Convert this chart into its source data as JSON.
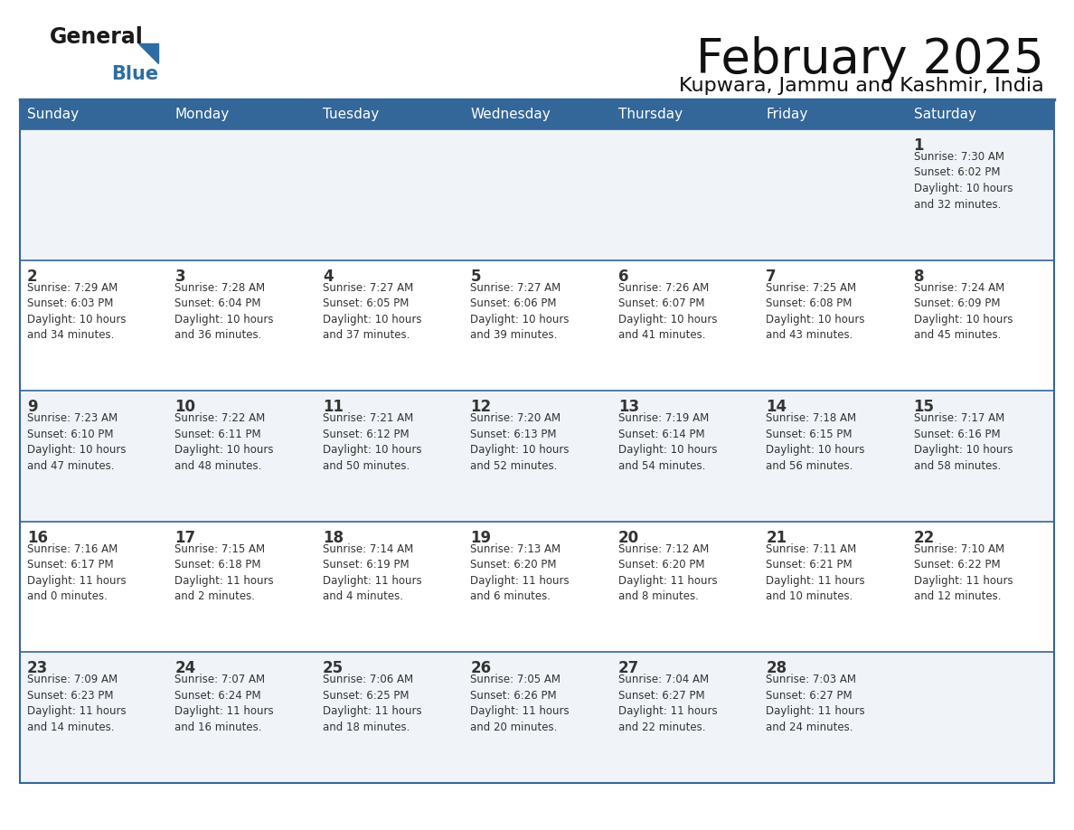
{
  "title": "February 2025",
  "subtitle": "Kupwara, Jammu and Kashmir, India",
  "header_bg": "#336699",
  "header_text_color": "#FFFFFF",
  "cell_bg_light": "#F0F4F8",
  "cell_bg_white": "#FFFFFF",
  "border_color": "#336699",
  "text_color": "#333333",
  "day_num_color": "#333333",
  "days_of_week": [
    "Sunday",
    "Monday",
    "Tuesday",
    "Wednesday",
    "Thursday",
    "Friday",
    "Saturday"
  ],
  "logo_general_color": "#1a1a1a",
  "logo_blue_color": "#2E6DA4",
  "logo_triangle_color": "#2E6DA4",
  "weeks": [
    [
      {
        "day": "",
        "info": ""
      },
      {
        "day": "",
        "info": ""
      },
      {
        "day": "",
        "info": ""
      },
      {
        "day": "",
        "info": ""
      },
      {
        "day": "",
        "info": ""
      },
      {
        "day": "",
        "info": ""
      },
      {
        "day": "1",
        "info": "Sunrise: 7:30 AM\nSunset: 6:02 PM\nDaylight: 10 hours\nand 32 minutes."
      }
    ],
    [
      {
        "day": "2",
        "info": "Sunrise: 7:29 AM\nSunset: 6:03 PM\nDaylight: 10 hours\nand 34 minutes."
      },
      {
        "day": "3",
        "info": "Sunrise: 7:28 AM\nSunset: 6:04 PM\nDaylight: 10 hours\nand 36 minutes."
      },
      {
        "day": "4",
        "info": "Sunrise: 7:27 AM\nSunset: 6:05 PM\nDaylight: 10 hours\nand 37 minutes."
      },
      {
        "day": "5",
        "info": "Sunrise: 7:27 AM\nSunset: 6:06 PM\nDaylight: 10 hours\nand 39 minutes."
      },
      {
        "day": "6",
        "info": "Sunrise: 7:26 AM\nSunset: 6:07 PM\nDaylight: 10 hours\nand 41 minutes."
      },
      {
        "day": "7",
        "info": "Sunrise: 7:25 AM\nSunset: 6:08 PM\nDaylight: 10 hours\nand 43 minutes."
      },
      {
        "day": "8",
        "info": "Sunrise: 7:24 AM\nSunset: 6:09 PM\nDaylight: 10 hours\nand 45 minutes."
      }
    ],
    [
      {
        "day": "9",
        "info": "Sunrise: 7:23 AM\nSunset: 6:10 PM\nDaylight: 10 hours\nand 47 minutes."
      },
      {
        "day": "10",
        "info": "Sunrise: 7:22 AM\nSunset: 6:11 PM\nDaylight: 10 hours\nand 48 minutes."
      },
      {
        "day": "11",
        "info": "Sunrise: 7:21 AM\nSunset: 6:12 PM\nDaylight: 10 hours\nand 50 minutes."
      },
      {
        "day": "12",
        "info": "Sunrise: 7:20 AM\nSunset: 6:13 PM\nDaylight: 10 hours\nand 52 minutes."
      },
      {
        "day": "13",
        "info": "Sunrise: 7:19 AM\nSunset: 6:14 PM\nDaylight: 10 hours\nand 54 minutes."
      },
      {
        "day": "14",
        "info": "Sunrise: 7:18 AM\nSunset: 6:15 PM\nDaylight: 10 hours\nand 56 minutes."
      },
      {
        "day": "15",
        "info": "Sunrise: 7:17 AM\nSunset: 6:16 PM\nDaylight: 10 hours\nand 58 minutes."
      }
    ],
    [
      {
        "day": "16",
        "info": "Sunrise: 7:16 AM\nSunset: 6:17 PM\nDaylight: 11 hours\nand 0 minutes."
      },
      {
        "day": "17",
        "info": "Sunrise: 7:15 AM\nSunset: 6:18 PM\nDaylight: 11 hours\nand 2 minutes."
      },
      {
        "day": "18",
        "info": "Sunrise: 7:14 AM\nSunset: 6:19 PM\nDaylight: 11 hours\nand 4 minutes."
      },
      {
        "day": "19",
        "info": "Sunrise: 7:13 AM\nSunset: 6:20 PM\nDaylight: 11 hours\nand 6 minutes."
      },
      {
        "day": "20",
        "info": "Sunrise: 7:12 AM\nSunset: 6:20 PM\nDaylight: 11 hours\nand 8 minutes."
      },
      {
        "day": "21",
        "info": "Sunrise: 7:11 AM\nSunset: 6:21 PM\nDaylight: 11 hours\nand 10 minutes."
      },
      {
        "day": "22",
        "info": "Sunrise: 7:10 AM\nSunset: 6:22 PM\nDaylight: 11 hours\nand 12 minutes."
      }
    ],
    [
      {
        "day": "23",
        "info": "Sunrise: 7:09 AM\nSunset: 6:23 PM\nDaylight: 11 hours\nand 14 minutes."
      },
      {
        "day": "24",
        "info": "Sunrise: 7:07 AM\nSunset: 6:24 PM\nDaylight: 11 hours\nand 16 minutes."
      },
      {
        "day": "25",
        "info": "Sunrise: 7:06 AM\nSunset: 6:25 PM\nDaylight: 11 hours\nand 18 minutes."
      },
      {
        "day": "26",
        "info": "Sunrise: 7:05 AM\nSunset: 6:26 PM\nDaylight: 11 hours\nand 20 minutes."
      },
      {
        "day": "27",
        "info": "Sunrise: 7:04 AM\nSunset: 6:27 PM\nDaylight: 11 hours\nand 22 minutes."
      },
      {
        "day": "28",
        "info": "Sunrise: 7:03 AM\nSunset: 6:27 PM\nDaylight: 11 hours\nand 24 minutes."
      },
      {
        "day": "",
        "info": ""
      }
    ]
  ]
}
